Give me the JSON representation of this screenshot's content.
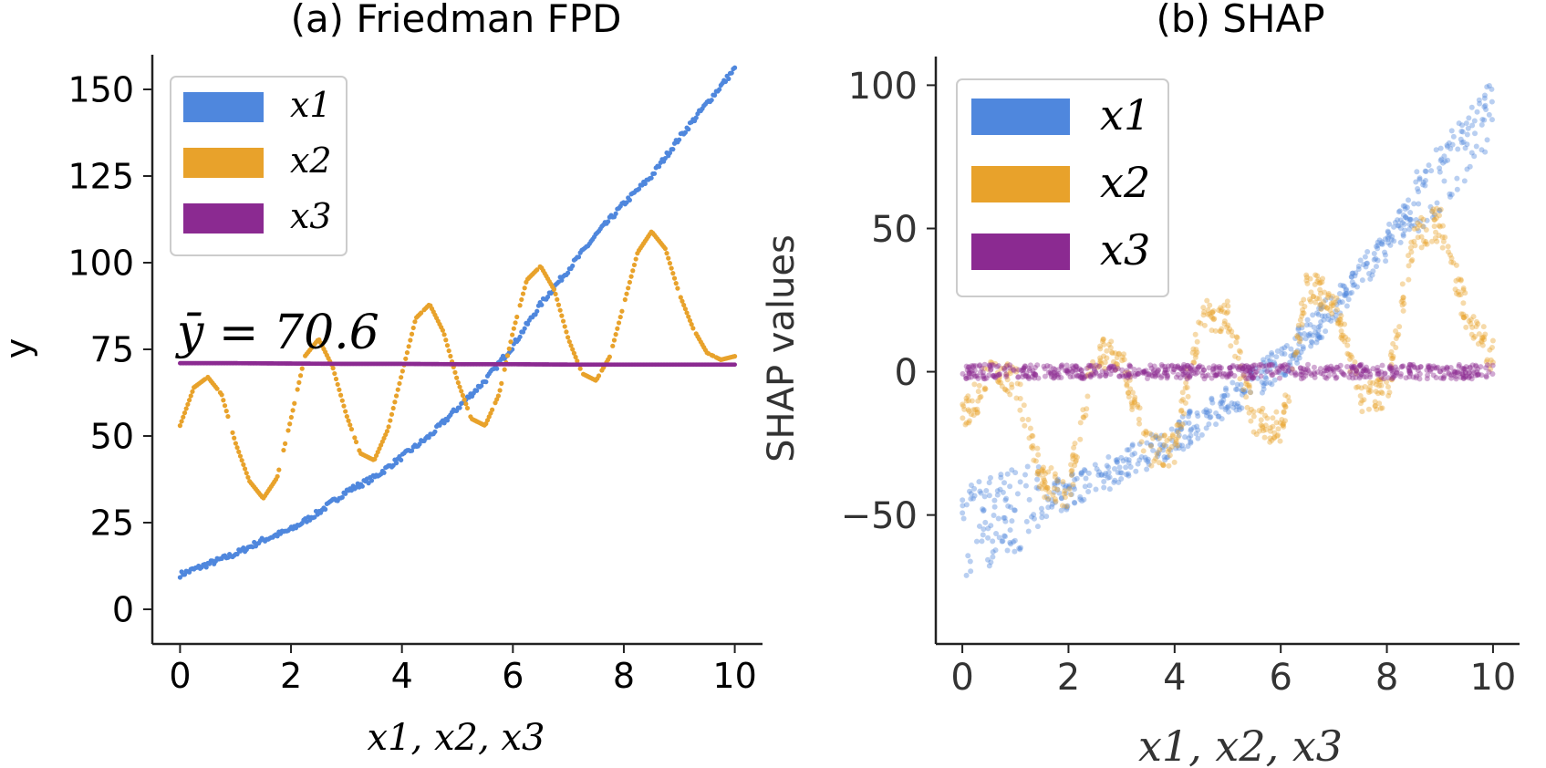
{
  "chart_data": [
    {
      "type": "line",
      "title": "(a) Friedman FPD",
      "xlabel": "x1, x2, x3",
      "ylabel": "y",
      "xlim": [
        -0.5,
        10.5
      ],
      "ylim": [
        -10,
        160
      ],
      "xticks": [
        0,
        2,
        4,
        6,
        8,
        10
      ],
      "yticks": [
        0,
        25,
        50,
        75,
        100,
        125,
        150
      ],
      "grid": false,
      "legend": "top-left",
      "annotation": "ȳ = 70.6",
      "series": [
        {
          "name": "x1",
          "color": "#4f87dd",
          "x": [
            0,
            0.5,
            1,
            1.5,
            2,
            2.5,
            3,
            3.5,
            4,
            4.5,
            5,
            5.5,
            6,
            6.5,
            7,
            7.5,
            8,
            8.5,
            9,
            9.5,
            10
          ],
          "y": [
            10,
            13,
            16,
            20,
            23,
            28,
            34,
            38,
            44,
            50,
            58,
            66,
            76,
            88,
            98,
            108,
            117,
            125,
            136,
            146,
            156
          ]
        },
        {
          "name": "x2",
          "color": "#e8a22b",
          "x": [
            0,
            0.25,
            0.5,
            0.75,
            1,
            1.25,
            1.5,
            1.75,
            2,
            2.25,
            2.5,
            2.75,
            3,
            3.25,
            3.5,
            3.75,
            4,
            4.25,
            4.5,
            4.75,
            5,
            5.25,
            5.5,
            5.75,
            6,
            6.25,
            6.5,
            6.75,
            7,
            7.25,
            7.5,
            7.75,
            8,
            8.25,
            8.5,
            8.75,
            9,
            9.25,
            9.5,
            9.75,
            10
          ],
          "y": [
            53,
            64,
            67,
            62,
            48,
            37,
            32,
            38,
            55,
            73,
            78,
            70,
            56,
            45,
            43,
            52,
            68,
            84,
            88,
            80,
            66,
            55,
            53,
            62,
            80,
            95,
            99,
            92,
            78,
            68,
            66,
            73,
            88,
            103,
            109,
            104,
            91,
            81,
            74,
            72,
            73
          ]
        },
        {
          "name": "x3",
          "color": "#8b2a91",
          "x": [
            0,
            1,
            2,
            3,
            4,
            5,
            6,
            7,
            8,
            9,
            10
          ],
          "y": [
            71,
            71,
            70.9,
            70.8,
            70.8,
            70.7,
            70.7,
            70.6,
            70.6,
            70.6,
            70.6
          ]
        }
      ]
    },
    {
      "type": "scatter",
      "title": "(b) SHAP",
      "xlabel": "x1, x2, x3",
      "ylabel": "SHAP values",
      "xlim": [
        -0.5,
        10.5
      ],
      "ylim": [
        -95,
        110
      ],
      "xticks": [
        0,
        2,
        4,
        6,
        8,
        10
      ],
      "yticks": [
        -50,
        0,
        50,
        100
      ],
      "grid": false,
      "legend": "top-left",
      "series": [
        {
          "name": "x1",
          "color": "#4f87dd",
          "x": [
            0,
            1,
            2,
            3,
            4,
            5,
            6,
            7,
            8,
            9,
            10
          ],
          "y": [
            -56,
            -49,
            -42,
            -33,
            -23,
            -11,
            3,
            22,
            45,
            68,
            90
          ]
        },
        {
          "name": "x2",
          "color": "#e8a22b",
          "x": [
            0,
            0.5,
            1,
            1.5,
            2,
            2.5,
            3,
            3.5,
            4,
            4.5,
            5,
            5.5,
            6,
            6.5,
            7,
            7.5,
            8,
            8.5,
            9,
            9.5,
            10
          ],
          "y": [
            -17,
            -2,
            -3,
            -38,
            -42,
            8,
            3,
            -27,
            -27,
            20,
            19,
            -17,
            -20,
            30,
            25,
            -8,
            -8,
            47,
            52,
            20,
            5
          ]
        },
        {
          "name": "x3",
          "color": "#8b2a91",
          "x": [
            0,
            1,
            2,
            3,
            4,
            5,
            6,
            7,
            8,
            9,
            10
          ],
          "y": [
            0,
            0,
            0,
            0,
            0,
            0,
            0,
            0,
            0,
            0,
            0
          ]
        }
      ]
    }
  ]
}
